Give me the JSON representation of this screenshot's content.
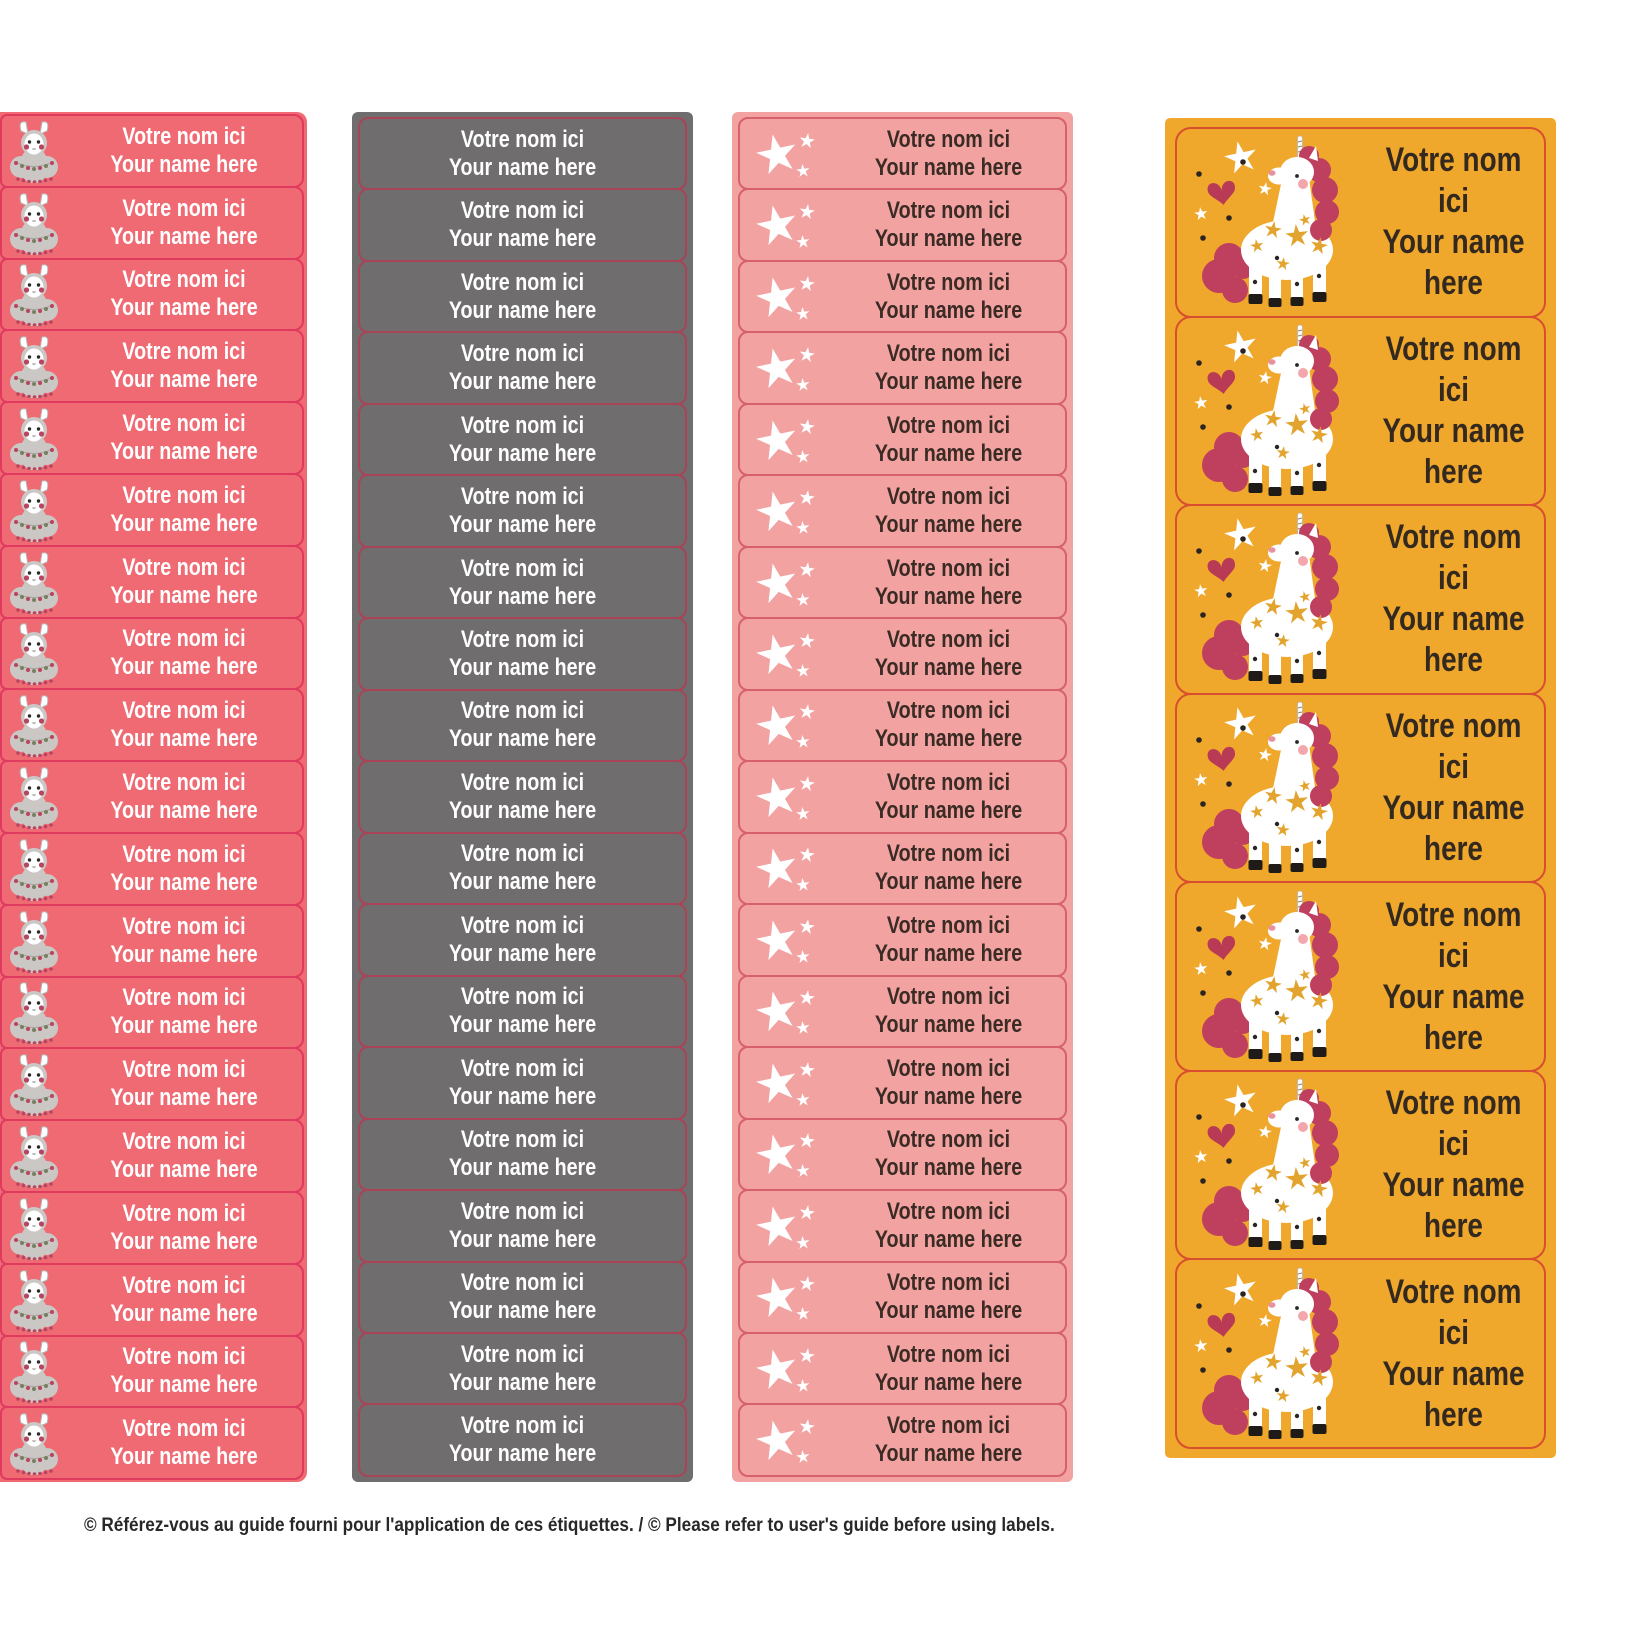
{
  "page": {
    "background": "#ffffff",
    "footer_note": "© Référez-vous au guide fourni pour l'application de ces étiquettes. / © Please refer to user's guide before using labels."
  },
  "label_text": {
    "line1": "Votre nom ici",
    "line2": "Your name here"
  },
  "columns": [
    {
      "column": "llama",
      "description": "small coral labels with llama icon",
      "icon": "llama-icon",
      "labels": 19,
      "bg_color": "#ef6a73",
      "border_color": "#e13a5f",
      "text_color": "#ffffff"
    },
    {
      "column": "gray",
      "description": "small plain gray labels",
      "icon": null,
      "labels": 19,
      "bg_color": "#706d6e",
      "border_color": "#a84458",
      "text_color": "#ffffff"
    },
    {
      "column": "stars",
      "description": "small salmon labels with white stars",
      "icon": "stars-icon",
      "labels": 19,
      "bg_color": "#f2a3a1",
      "border_color": "#d6606c",
      "text_color": "#3b2b25"
    },
    {
      "column": "unicorn",
      "description": "large orange labels with unicorn illustration",
      "icon": "unicorn-icon",
      "labels": 7,
      "bg_color": "#efa72c",
      "border_color": "#d84f2f",
      "text_color": "#33291f"
    }
  ]
}
